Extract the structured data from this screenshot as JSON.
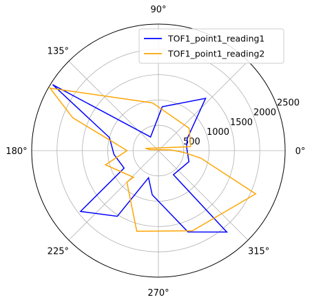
{
  "chart_data": {
    "type": "polar-line",
    "rmax": 2500,
    "radial_ticks": [
      500,
      1000,
      1500,
      2000,
      2500
    ],
    "radial_tick_labels": [
      "500",
      "1000",
      "1500",
      "2000",
      "2500"
    ],
    "angular_ticks_deg": [
      0,
      45,
      90,
      135,
      180,
      225,
      270,
      315
    ],
    "angular_tick_labels": [
      "0°",
      "",
      "90°",
      "135°",
      "180°",
      "225°",
      "270°",
      "315°"
    ],
    "grid": true,
    "legend_position": "upper-right",
    "series": [
      {
        "name": "TOF1_point1_reading1",
        "color": "#0000ff",
        "points": [
          {
            "theta": 7,
            "r": 560
          },
          {
            "theta": 23,
            "r": 620
          },
          {
            "theta": 48,
            "r": 1390
          },
          {
            "theta": 85,
            "r": 870
          },
          {
            "theta": 120,
            "r": 310
          },
          {
            "theta": 148,
            "r": 2460
          },
          {
            "theta": 165,
            "r": 1000
          },
          {
            "theta": 185,
            "r": 880
          },
          {
            "theta": 207,
            "r": 760
          },
          {
            "theta": 218,
            "r": 1950
          },
          {
            "theta": 238,
            "r": 1530
          },
          {
            "theta": 250,
            "r": 570
          },
          {
            "theta": 262,
            "r": 880
          },
          {
            "theta": 290,
            "r": 1710
          },
          {
            "theta": 310,
            "r": 2100
          },
          {
            "theta": 302,
            "r": 560
          },
          {
            "theta": 340,
            "r": 640
          },
          {
            "theta": 7,
            "r": 560
          }
        ]
      },
      {
        "name": "TOF1_point1_reading2",
        "color": "#ffa500",
        "points": [
          {
            "theta": 7,
            "r": 640
          },
          {
            "theta": 36,
            "r": 750
          },
          {
            "theta": 97,
            "r": 950
          },
          {
            "theta": 150,
            "r": 2470
          },
          {
            "theta": 159,
            "r": 1810
          },
          {
            "theta": 170,
            "r": 880
          },
          {
            "theta": 180,
            "r": 620
          },
          {
            "theta": 195,
            "r": 1080
          },
          {
            "theta": 227,
            "r": 720
          },
          {
            "theta": 225,
            "r": 880
          },
          {
            "theta": 255,
            "r": 1650
          },
          {
            "theta": 293,
            "r": 1720
          },
          {
            "theta": 336,
            "r": 2100
          },
          {
            "theta": 350,
            "r": 850
          },
          {
            "theta": 356,
            "r": 500
          },
          {
            "theta": 3,
            "r": 250
          },
          {
            "theta": 173,
            "r": 170
          },
          {
            "theta": 170,
            "r": 260
          },
          {
            "theta": 7,
            "r": 640
          }
        ]
      }
    ]
  }
}
